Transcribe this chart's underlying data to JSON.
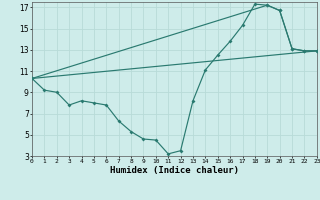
{
  "xlabel": "Humidex (Indice chaleur)",
  "bg_color": "#ceecea",
  "line_color": "#2a7a70",
  "grid_color": "#b8dbd8",
  "xlim": [
    0,
    23
  ],
  "ylim": [
    3,
    17.5
  ],
  "xtick_vals": [
    0,
    1,
    2,
    3,
    4,
    5,
    6,
    7,
    8,
    9,
    10,
    11,
    12,
    13,
    14,
    15,
    16,
    17,
    18,
    19,
    20,
    21,
    22,
    23
  ],
  "ytick_vals": [
    3,
    5,
    7,
    9,
    11,
    13,
    15,
    17
  ],
  "curve1_x": [
    0,
    1,
    2,
    3,
    4,
    5,
    6,
    7,
    8,
    9,
    10,
    11,
    12,
    13,
    14,
    15,
    16,
    17,
    18,
    19,
    20,
    21,
    22,
    23
  ],
  "curve1_y": [
    10.3,
    9.2,
    9.0,
    7.8,
    8.2,
    8.0,
    7.8,
    6.3,
    5.3,
    4.6,
    4.5,
    3.2,
    3.5,
    8.2,
    11.1,
    12.5,
    13.8,
    15.3,
    17.3,
    17.2,
    16.7,
    13.1,
    12.9,
    12.9
  ],
  "curve2_x": [
    0,
    19,
    20,
    21,
    22,
    23
  ],
  "curve2_y": [
    10.3,
    17.2,
    16.7,
    13.1,
    12.9,
    12.9
  ],
  "line3_x": [
    0,
    23
  ],
  "line3_y": [
    10.3,
    12.9
  ]
}
